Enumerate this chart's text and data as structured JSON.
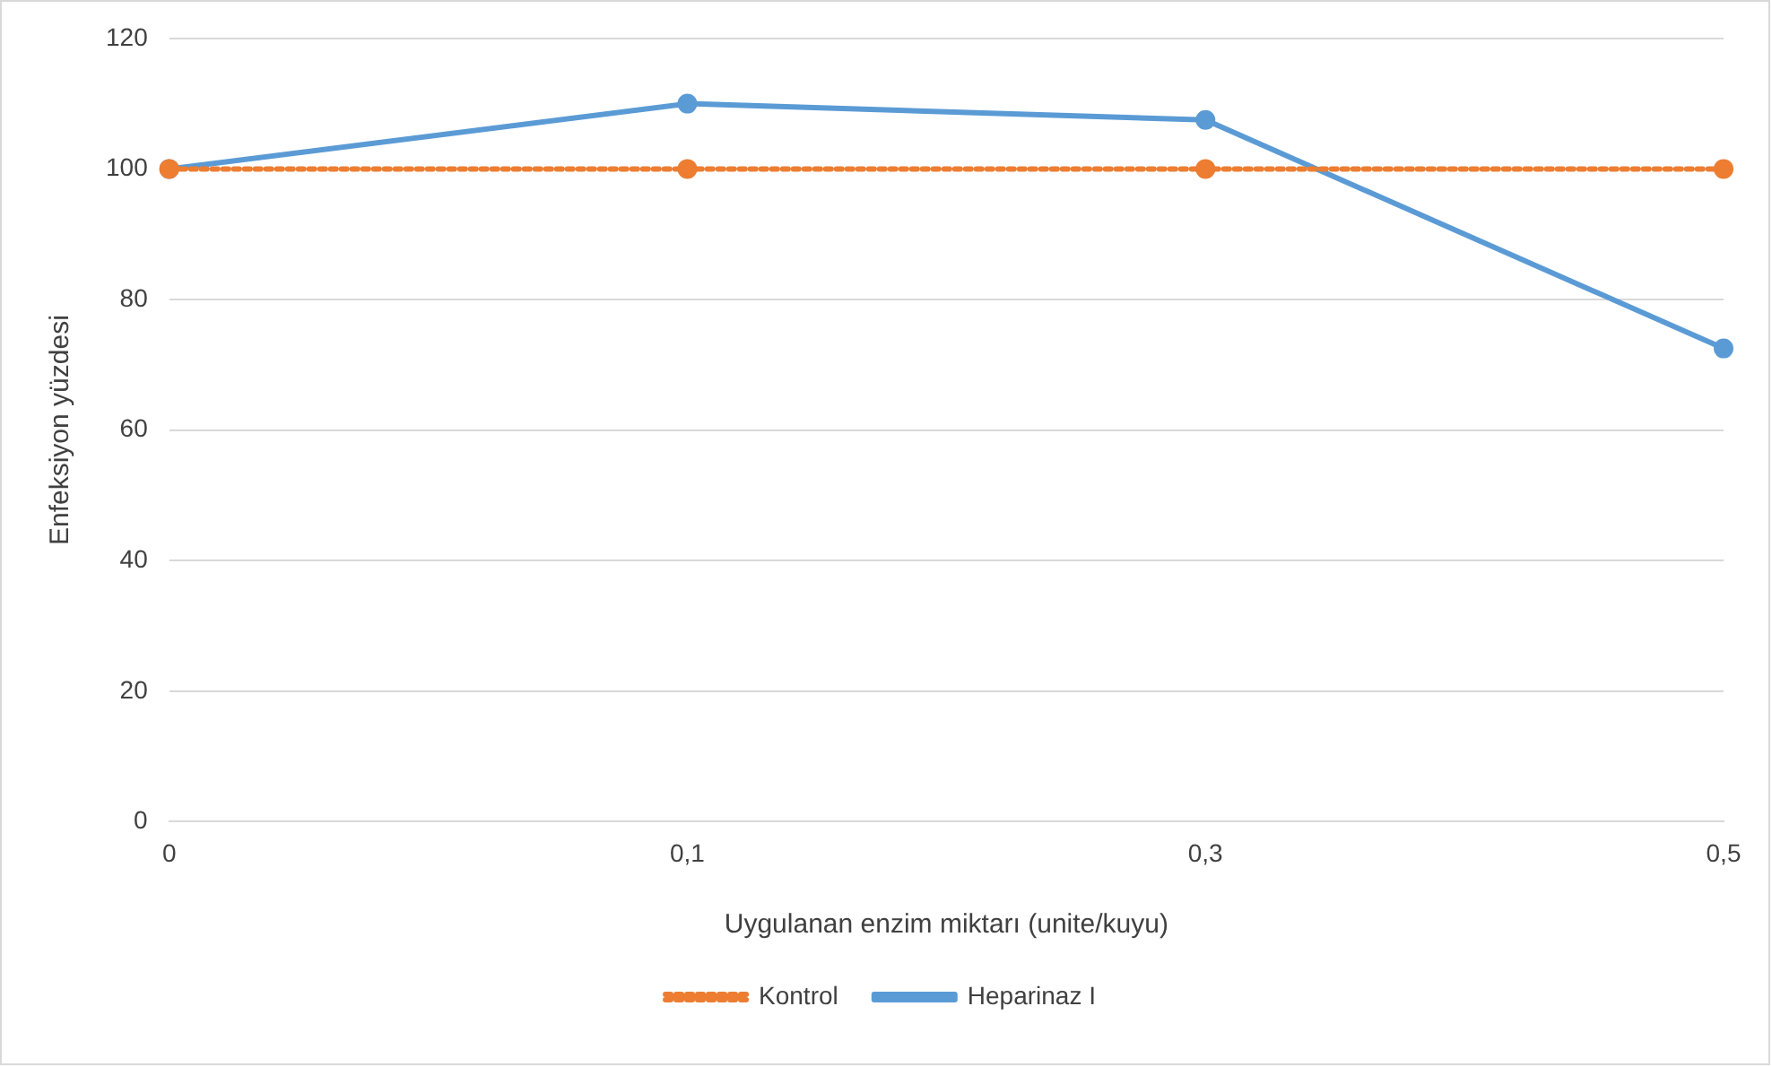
{
  "chart_data": {
    "type": "line",
    "xlabel": "Uygulanan enzim miktarı (unite/kuyu)",
    "ylabel": "Enfeksiyon yüzdesi",
    "categories": [
      "0",
      "0,1",
      "0,3",
      "0,5"
    ],
    "series": [
      {
        "name": "Heparinaz I",
        "color": "#5b9bd5",
        "values": [
          100,
          110,
          107.5,
          72.5
        ],
        "line_style": "solid"
      },
      {
        "name": "Kontrol",
        "color": "#ed7d31",
        "values": [
          100,
          100,
          100,
          100
        ],
        "line_style": "dotted"
      }
    ],
    "ylim": [
      0,
      120
    ],
    "yticks": [
      0,
      20,
      40,
      60,
      80,
      100,
      120
    ],
    "grid": "y",
    "legend": "bottom",
    "marker": "circle"
  }
}
